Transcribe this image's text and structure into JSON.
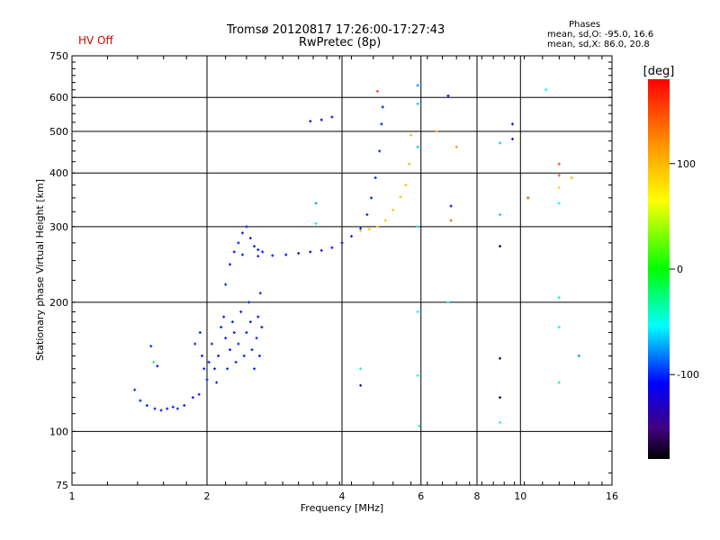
{
  "header": {
    "status": "HV Off",
    "title_line1": "Tromsø 20120817 17:26:00-17:27:43",
    "title_line2": "RwPretec (8p)",
    "phases_title": "Phases",
    "phases_line1": "mean, sd,O: -95.0, 16.6",
    "phases_line2": "mean, sd,X: 86.0, 20.8"
  },
  "chart_data": {
    "type": "scatter",
    "xlabel": "Frequency [MHz]",
    "ylabel": "Stationary phase Virtual Height [km]",
    "x_scale": "log",
    "y_scale": "log",
    "xlim": [
      1,
      16
    ],
    "ylim": [
      75,
      750
    ],
    "x_ticks": [
      {
        "value": 1,
        "label": "1"
      },
      {
        "value": 2,
        "label": "2"
      },
      {
        "value": 4,
        "label": "4"
      },
      {
        "value": 6,
        "label": "6"
      },
      {
        "value": 8,
        "label": "8"
      },
      {
        "value": 10,
        "label": "10"
      },
      {
        "value": 16,
        "label": "16"
      }
    ],
    "y_ticks": [
      {
        "value": 75,
        "label": "75"
      },
      {
        "value": 100,
        "label": "100"
      },
      {
        "value": 200,
        "label": "200"
      },
      {
        "value": 300,
        "label": "300"
      },
      {
        "value": 400,
        "label": "400"
      },
      {
        "value": 500,
        "label": "500"
      },
      {
        "value": 600,
        "label": "600"
      },
      {
        "value": 750,
        "label": "750"
      }
    ],
    "grid": true,
    "colorbar": {
      "label": "[deg]",
      "range": [
        -180,
        180
      ],
      "ticks": [
        {
          "value": 100,
          "label": "100"
        },
        {
          "value": 0,
          "label": "0"
        },
        {
          "value": -100,
          "label": "-100"
        }
      ]
    },
    "series": [
      {
        "points": [
          [
            1.38,
            125,
            -95
          ],
          [
            1.42,
            118,
            -95
          ],
          [
            1.47,
            115,
            -95
          ],
          [
            1.53,
            113,
            -95
          ],
          [
            1.58,
            112,
            -95
          ],
          [
            1.63,
            113,
            -95
          ],
          [
            1.68,
            114,
            -95
          ],
          [
            1.72,
            113,
            -95
          ],
          [
            1.78,
            115,
            -95
          ],
          [
            1.86,
            120,
            -95
          ],
          [
            1.92,
            122,
            -95
          ],
          [
            1.5,
            158,
            -90
          ],
          [
            1.52,
            145,
            -30
          ],
          [
            1.55,
            142,
            -95
          ]
        ]
      },
      {
        "points": [
          [
            1.88,
            160,
            -95
          ],
          [
            1.93,
            170,
            -95
          ],
          [
            1.95,
            150,
            -95
          ],
          [
            1.97,
            140,
            -95
          ],
          [
            2.0,
            132,
            -95
          ],
          [
            2.02,
            145,
            -95
          ],
          [
            2.05,
            160,
            -95
          ],
          [
            2.08,
            140,
            -95
          ],
          [
            2.1,
            130,
            -95
          ],
          [
            2.12,
            150,
            -95
          ],
          [
            2.15,
            175,
            -95
          ],
          [
            2.18,
            185,
            -95
          ],
          [
            2.2,
            165,
            -95
          ],
          [
            2.22,
            140,
            -95
          ],
          [
            2.25,
            155,
            -95
          ],
          [
            2.28,
            180,
            -95
          ],
          [
            2.3,
            170,
            -95
          ],
          [
            2.32,
            145,
            -95
          ],
          [
            2.35,
            160,
            -95
          ],
          [
            2.38,
            190,
            -95
          ],
          [
            2.42,
            150,
            -95
          ],
          [
            2.45,
            170,
            -95
          ],
          [
            2.48,
            200,
            -95
          ],
          [
            2.5,
            180,
            -95
          ],
          [
            2.52,
            155,
            -95
          ],
          [
            2.55,
            140,
            -95
          ],
          [
            2.58,
            165,
            -95
          ],
          [
            2.6,
            185,
            -95
          ],
          [
            2.62,
            150,
            -95
          ],
          [
            2.63,
            210,
            -95
          ],
          [
            2.65,
            175,
            -95
          ],
          [
            2.2,
            220,
            -95
          ],
          [
            2.25,
            245,
            -95
          ],
          [
            2.3,
            262,
            -95
          ],
          [
            2.35,
            275,
            -95
          ],
          [
            2.4,
            290,
            -95
          ],
          [
            2.45,
            300,
            -95
          ],
          [
            2.5,
            282,
            -95
          ],
          [
            2.55,
            270,
            -95
          ],
          [
            2.6,
            265,
            -95
          ],
          [
            2.66,
            262,
            -95
          ]
        ]
      },
      {
        "points": [
          [
            2.4,
            258,
            -95
          ],
          [
            2.6,
            256,
            -95
          ],
          [
            2.8,
            257,
            -95
          ],
          [
            3.0,
            258,
            -100
          ],
          [
            3.2,
            260,
            -110
          ],
          [
            3.4,
            262,
            -110
          ],
          [
            3.6,
            264,
            -110
          ],
          [
            3.8,
            268,
            -100
          ],
          [
            4.0,
            275,
            -100
          ],
          [
            4.2,
            285,
            -95
          ],
          [
            4.4,
            297,
            -95
          ],
          [
            4.55,
            320,
            -95
          ],
          [
            4.65,
            350,
            -95
          ],
          [
            4.75,
            390,
            -95
          ],
          [
            4.85,
            450,
            -95
          ],
          [
            4.9,
            520,
            -95
          ],
          [
            4.93,
            570,
            -95
          ],
          [
            3.4,
            528,
            -110
          ],
          [
            3.6,
            532,
            -110
          ],
          [
            3.8,
            540,
            -105
          ]
        ]
      },
      {
        "points": [
          [
            4.4,
            293,
            90
          ],
          [
            4.6,
            296,
            90
          ],
          [
            4.8,
            300,
            90
          ],
          [
            5.0,
            310,
            90
          ],
          [
            5.2,
            328,
            90
          ],
          [
            5.4,
            352,
            95
          ],
          [
            5.55,
            375,
            95
          ],
          [
            5.65,
            420,
            100
          ],
          [
            5.7,
            490,
            100
          ],
          [
            4.8,
            620,
            150
          ],
          [
            6.5,
            500,
            110
          ],
          [
            7.2,
            460,
            110
          ],
          [
            7.0,
            310,
            140
          ],
          [
            10.4,
            350,
            150
          ],
          [
            12.2,
            420,
            140
          ],
          [
            12.2,
            395,
            140
          ],
          [
            12.2,
            370,
            80
          ],
          [
            13.0,
            390,
            100
          ]
        ]
      },
      {
        "points": [
          [
            5.9,
            640,
            -70
          ],
          [
            5.9,
            580,
            -60
          ],
          [
            5.9,
            460,
            -60
          ],
          [
            5.9,
            300,
            -55
          ],
          [
            5.9,
            190,
            -50
          ],
          [
            5.9,
            135,
            -40
          ],
          [
            5.95,
            103,
            -40
          ],
          [
            6.9,
            605,
            -110
          ],
          [
            6.9,
            200,
            -50
          ],
          [
            7.0,
            335,
            -100
          ],
          [
            9.0,
            320,
            -60
          ],
          [
            9.0,
            470,
            -60
          ],
          [
            9.0,
            105,
            -50
          ],
          [
            9.6,
            520,
            -110
          ],
          [
            9.6,
            480,
            -110
          ],
          [
            11.4,
            625,
            -50
          ],
          [
            12.2,
            340,
            -50
          ],
          [
            12.2,
            205,
            -40
          ],
          [
            12.2,
            175,
            -50
          ],
          [
            12.2,
            130,
            -30
          ],
          [
            13.5,
            150,
            -70
          ],
          [
            3.5,
            340,
            -70
          ],
          [
            3.5,
            305,
            -40
          ],
          [
            4.4,
            140,
            -40
          ],
          [
            4.4,
            128,
            -120
          ],
          [
            9.0,
            270,
            -160
          ],
          [
            9.0,
            148,
            -160
          ],
          [
            9.0,
            120,
            -160
          ]
        ]
      }
    ]
  }
}
